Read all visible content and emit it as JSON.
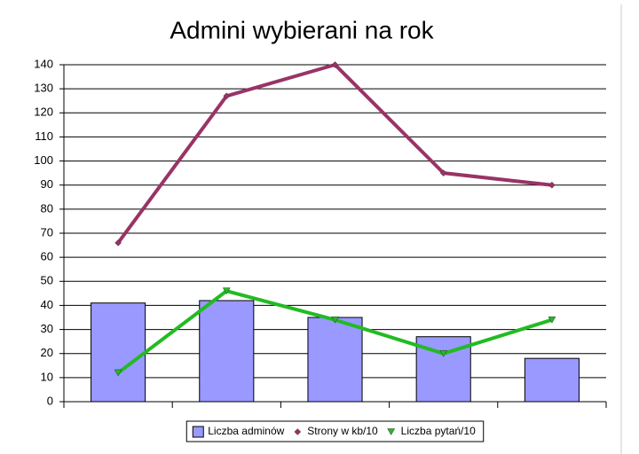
{
  "chart_data": {
    "type": "combo",
    "title": "Admini wybierani na rok",
    "categories": [
      null,
      null,
      null,
      null,
      null
    ],
    "series": [
      {
        "name": "Liczba adminów",
        "type": "bar",
        "color": "#9999ff",
        "values": [
          41,
          42,
          35,
          27,
          18
        ]
      },
      {
        "name": "Strony w kb/10",
        "type": "line",
        "marker": "diamond",
        "color": "#993366",
        "values": [
          66,
          127,
          140,
          95,
          90
        ]
      },
      {
        "name": "Liczba pytań/10",
        "type": "line",
        "marker": "triangle-down",
        "color": "#22bb22",
        "values": [
          12,
          46,
          34,
          20,
          34
        ]
      }
    ],
    "ylim": [
      0,
      140
    ],
    "yticks": [
      0,
      10,
      20,
      30,
      40,
      50,
      60,
      70,
      80,
      90,
      100,
      110,
      120,
      130,
      140
    ],
    "grid": true,
    "legend": "bottom"
  }
}
